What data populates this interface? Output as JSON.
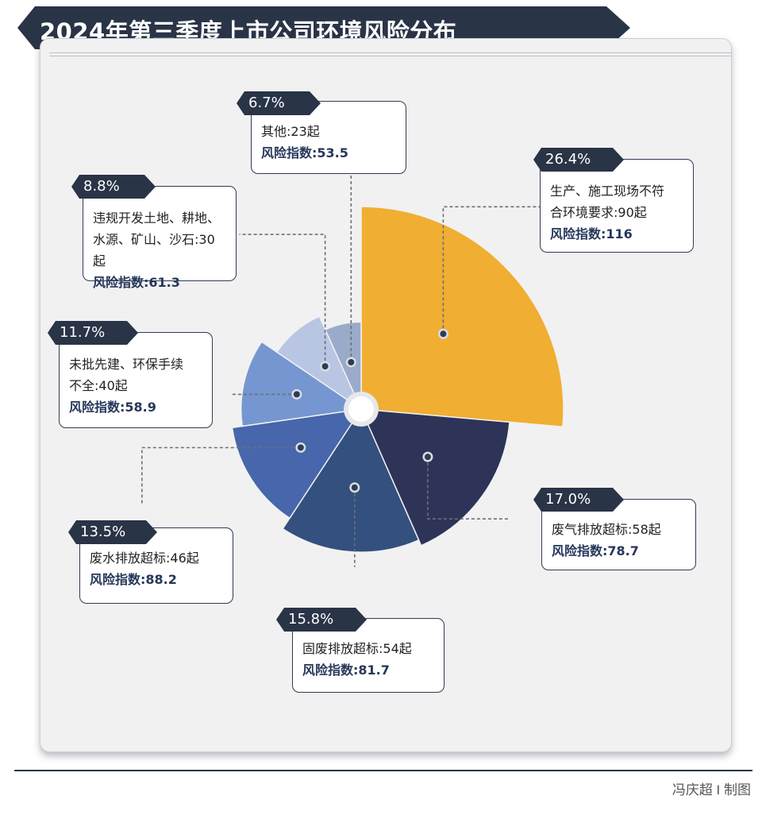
{
  "title": "2024年第三季度上市公司环境风险分布",
  "credit": "冯庆超 I 制图",
  "colors": {
    "banner": "#2a3447",
    "index_text": "#26375a"
  },
  "chart_data": {
    "type": "pie",
    "variant": "nightingale-rose",
    "index_label": "风险指数",
    "slices": [
      {
        "category": "生产、施工现场不符合环境要求",
        "count": 90,
        "count_label": "生产、施工现场不符合环境要求:90起",
        "line1": "生产、施工现场不符",
        "line2": "合环境要求:90起",
        "percent": 26.4,
        "percent_label": "26.4%",
        "risk_index": 116,
        "index_text": "风险指数:116",
        "color": "#f0ae32"
      },
      {
        "category": "废气排放超标",
        "count": 58,
        "count_label": "废气排放超标:58起",
        "line1": "废气排放超标:58起",
        "percent": 17.0,
        "percent_label": "17.0%",
        "risk_index": 78.7,
        "index_text": "风险指数:78.7",
        "color": "#2d3457"
      },
      {
        "category": "固废排放超标",
        "count": 54,
        "count_label": "固废排放超标:54起",
        "line1": "固废排放超标:54起",
        "percent": 15.8,
        "percent_label": "15.8%",
        "risk_index": 81.7,
        "index_text": "风险指数:81.7",
        "color": "#33507e"
      },
      {
        "category": "废水排放超标",
        "count": 46,
        "count_label": "废水排放超标:46起",
        "line1": "废水排放超标:46起",
        "percent": 13.5,
        "percent_label": "13.5%",
        "risk_index": 88.2,
        "index_text": "风险指数:88.2",
        "color": "#4766ac"
      },
      {
        "category": "未批先建、环保手续不全",
        "count": 40,
        "count_label": "未批先建、环保手续不全:40起",
        "line1": "未批先建、环保手续",
        "line2": "不全:40起",
        "percent": 11.7,
        "percent_label": "11.7%",
        "risk_index": 58.9,
        "index_text": "风险指数:58.9",
        "color": "#7596d0"
      },
      {
        "category": "违规开发土地、耕地、水源、矿山、沙石",
        "count": 30,
        "count_label": "违规开发土地、耕地、水源、矿山、沙石:30起",
        "line1": "违规开发土地、耕地、",
        "line2": "水源、矿山、沙石:30起",
        "percent": 8.8,
        "percent_label": "8.8%",
        "risk_index": 61.3,
        "index_text": "风险指数:61.3",
        "color": "#b8c6e3"
      },
      {
        "category": "其他",
        "count": 23,
        "count_label": "其他:23起",
        "line1": "其他:23起",
        "percent": 6.7,
        "percent_label": "6.7%",
        "risk_index": 53.5,
        "index_text": "风险指数:53.5",
        "color": "#9aabc9"
      }
    ]
  }
}
